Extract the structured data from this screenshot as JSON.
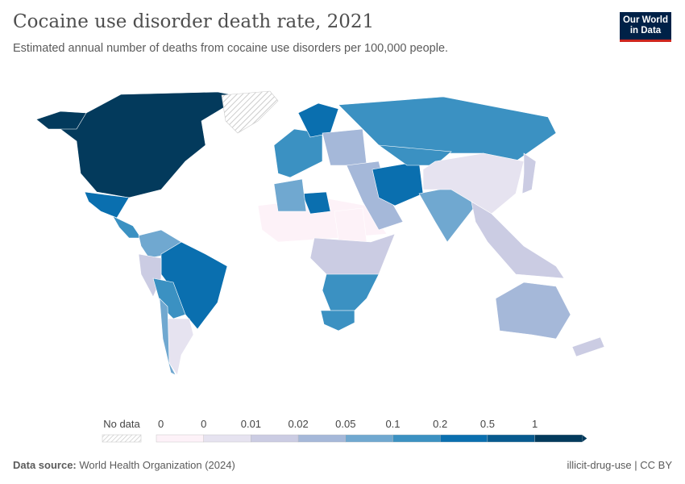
{
  "header": {
    "title": "Cocaine use disorder death rate, 2021",
    "subtitle": "Estimated annual number of deaths from cocaine use disorders per 100,000 people.",
    "logo": "Our World in Data"
  },
  "legend": {
    "no_data_label": "No data",
    "ticks": [
      "0",
      "0",
      "0.01",
      "0.02",
      "0.05",
      "0.1",
      "0.2",
      "0.5",
      "1"
    ],
    "bin_colors": [
      "#fdf2f8",
      "#e6e3f0",
      "#cbcce3",
      "#a5b8d9",
      "#70a8d0",
      "#3b91c2",
      "#0a6faf",
      "#075a8f",
      "#033a5c"
    ]
  },
  "chart_data": {
    "type": "choropleth",
    "year": "2021",
    "unit": "deaths per 100,000 people",
    "regions": [
      {
        "name": "United States & Canada",
        "bin": 8
      },
      {
        "name": "Alaska",
        "bin": 8
      },
      {
        "name": "Greenland",
        "bin": null
      },
      {
        "name": "Mexico",
        "bin": 6
      },
      {
        "name": "Central America",
        "bin": 5
      },
      {
        "name": "Colombia/Venezuela",
        "bin": 4
      },
      {
        "name": "Brazil",
        "bin": 6
      },
      {
        "name": "Peru",
        "bin": 2
      },
      {
        "name": "Bolivia/Paraguay",
        "bin": 5
      },
      {
        "name": "Argentina",
        "bin": 1
      },
      {
        "name": "Chile",
        "bin": 4
      },
      {
        "name": "Western Europe",
        "bin": 5
      },
      {
        "name": "Scandinavia",
        "bin": 6
      },
      {
        "name": "Eastern Europe",
        "bin": 3
      },
      {
        "name": "Russia",
        "bin": 5
      },
      {
        "name": "North Africa (Sahara)",
        "bin": 0
      },
      {
        "name": "Libya",
        "bin": 6
      },
      {
        "name": "Algeria",
        "bin": 4
      },
      {
        "name": "West Africa",
        "bin": 0
      },
      {
        "name": "Sudan",
        "bin": 4
      },
      {
        "name": "Central Africa",
        "bin": 2
      },
      {
        "name": "Southern Africa",
        "bin": 5
      },
      {
        "name": "South Africa",
        "bin": 5
      },
      {
        "name": "Middle East",
        "bin": 3
      },
      {
        "name": "Iran/Afghanistan",
        "bin": 6
      },
      {
        "name": "Central Asia",
        "bin": 5
      },
      {
        "name": "India",
        "bin": 4
      },
      {
        "name": "China/Mongolia",
        "bin": 1
      },
      {
        "name": "Southeast Asia",
        "bin": 2
      },
      {
        "name": "Japan",
        "bin": 2
      },
      {
        "name": "Australia",
        "bin": 3
      },
      {
        "name": "New Zealand",
        "bin": 2
      }
    ]
  },
  "footer": {
    "source_label": "Data source:",
    "source": "World Health Organization (2024)",
    "slug": "illicit-drug-use | CC BY"
  }
}
